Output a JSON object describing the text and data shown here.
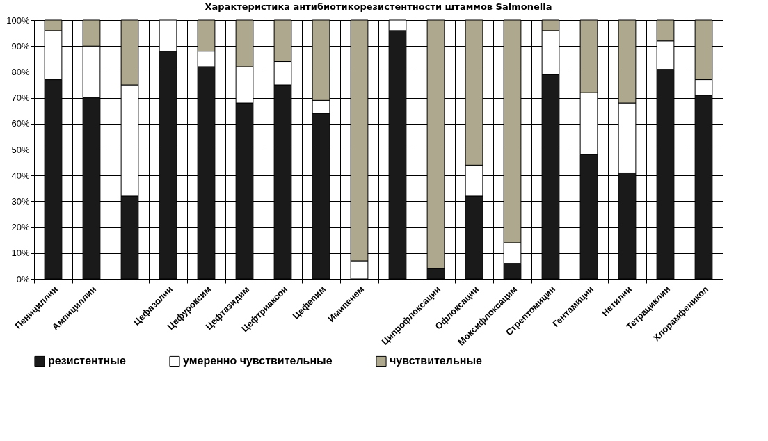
{
  "chart_data": {
    "type": "bar",
    "title": "Характеристика антибиотикорезистентности штаммов Salmonella",
    "stacked": true,
    "categories": [
      "Пенициллин",
      "Ампициллин",
      null,
      "Цефазолин",
      "Цефуроксим",
      "Цефтазидим",
      "Цефтриаксон",
      "Цефепим",
      "Имипенем",
      null,
      "Ципрофлоксацин",
      "Офлоксацин",
      "Моксифлоксацим",
      "Стрептомицин",
      "Гентамицин",
      "Нетилин",
      "Тетрациклин",
      "Хлорамфеникол"
    ],
    "series": [
      {
        "name": "резистентные",
        "color": "#1a1a1a",
        "values": [
          77,
          70,
          32,
          88,
          82,
          68,
          75,
          64,
          0,
          96,
          4,
          32,
          6,
          79,
          48,
          41,
          81,
          71
        ]
      },
      {
        "name": "умеренно чувствительные",
        "color": "#ffffff",
        "values": [
          19,
          20,
          43,
          12,
          6,
          14,
          9,
          5,
          7,
          4,
          0,
          12,
          8,
          17,
          24,
          27,
          11,
          6
        ]
      },
      {
        "name": "чувствительные",
        "color": "#aea88f",
        "values": [
          4,
          10,
          25,
          0,
          12,
          18,
          16,
          31,
          93,
          0,
          96,
          56,
          86,
          4,
          28,
          32,
          8,
          23
        ]
      }
    ],
    "ylim": [
      0,
      100
    ],
    "yticks": [
      {
        "value": 0,
        "label": "0%"
      },
      {
        "value": 10,
        "label": "10%"
      },
      {
        "value": 20,
        "label": "20%"
      },
      {
        "value": 30,
        "label": "30%"
      },
      {
        "value": 40,
        "label": "40%"
      },
      {
        "value": 50,
        "label": "50%"
      },
      {
        "value": 60,
        "label": "60%"
      },
      {
        "value": 70,
        "label": "70%"
      },
      {
        "value": 80,
        "label": "80%"
      },
      {
        "value": 90,
        "label": "90%"
      },
      {
        "value": 100,
        "label": "100%"
      }
    ],
    "grid": true,
    "legend": "bottom"
  }
}
